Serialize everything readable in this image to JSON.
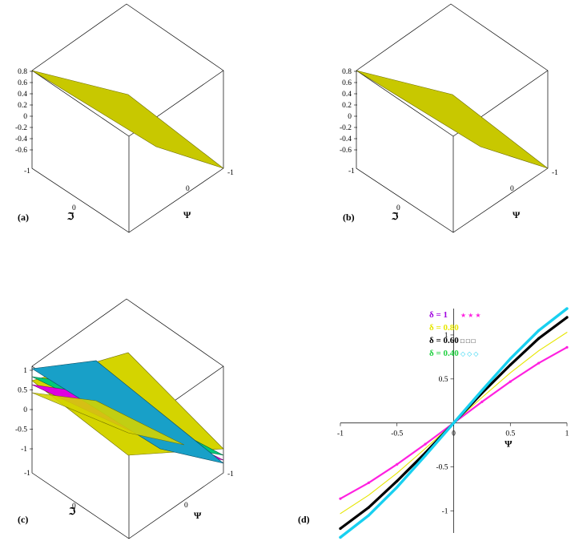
{
  "panels": [
    {
      "id": "a",
      "label": "(a)",
      "x_axis_label": "Ψ",
      "y_axis_label": "ℑ",
      "z_ticks": [
        "0.8",
        "0.6",
        "0.4",
        "0.2",
        "0",
        "-0.2",
        "-0.4",
        "-0.6"
      ],
      "y_axis_ticks": [
        "-1",
        "0"
      ],
      "x_axis_ticks": [
        "-1",
        "0"
      ]
    },
    {
      "id": "b",
      "label": "(b)",
      "x_axis_label": "Ψ",
      "y_axis_label": "ℑ",
      "z_ticks": [
        "0.8",
        "0.6",
        "0.4",
        "0.2",
        "0",
        "-0.2",
        "-0.4",
        "-0.6"
      ],
      "y_axis_ticks": [
        "-1",
        "0"
      ],
      "x_axis_ticks": [
        "-1",
        "0"
      ]
    },
    {
      "id": "c",
      "label": "(c)",
      "x_axis_label": "Ψ",
      "y_axis_label": "ℑ",
      "z_ticks": [
        "1",
        "0.5",
        "0",
        "-0.5",
        "-1"
      ],
      "y_axis_ticks": [
        "-1",
        "0"
      ],
      "x_axis_ticks": [
        "-1",
        "0"
      ]
    }
  ],
  "surface_colors": {
    "yellow": "#d4d400",
    "green": "#00c878",
    "magenta": "#e000e0",
    "cyan": "#18a0c8"
  },
  "chart_data": {
    "type": "line",
    "panel_label": "(d)",
    "xlabel": "Ψ",
    "ylabel": "",
    "xlim": [
      -1,
      1
    ],
    "ylim": [
      -1.25,
      1.3
    ],
    "x_ticks": [
      "-1",
      "-0.5",
      "0",
      "0.5",
      "1"
    ],
    "y_ticks": [
      "-1",
      "-0.5",
      "0.5",
      "1"
    ],
    "x": [
      -1,
      -0.75,
      -0.5,
      -0.25,
      0,
      0.25,
      0.5,
      0.75,
      1
    ],
    "series": [
      {
        "name": "δ = 1",
        "color": "#ff20e0",
        "marker": "star",
        "legend_marker": "★ ★ ★",
        "values": [
          -0.86,
          -0.68,
          -0.47,
          -0.24,
          0,
          0.24,
          0.47,
          0.68,
          0.86
        ]
      },
      {
        "name": "δ = 0.80",
        "color": "#e6e600",
        "marker": "line",
        "legend_marker": "",
        "values": [
          -1.03,
          -0.82,
          -0.57,
          -0.29,
          0,
          0.29,
          0.57,
          0.82,
          1.03
        ]
      },
      {
        "name": "δ = 0.60",
        "color": "#000000",
        "marker": "square",
        "legend_marker": "□ □ □",
        "values": [
          -1.2,
          -0.96,
          -0.66,
          -0.34,
          0,
          0.34,
          0.66,
          0.96,
          1.2
        ]
      },
      {
        "name": "δ = 0.40",
        "color": "#18d0f0",
        "marker": "diamond",
        "legend_marker": "◇ ◇ ◇",
        "values": [
          -1.3,
          -1.05,
          -0.73,
          -0.37,
          0,
          0.37,
          0.73,
          1.05,
          1.3
        ]
      }
    ],
    "legend_title_overlap": "δ = 0.60 / 0.80 labels overlap in original"
  }
}
